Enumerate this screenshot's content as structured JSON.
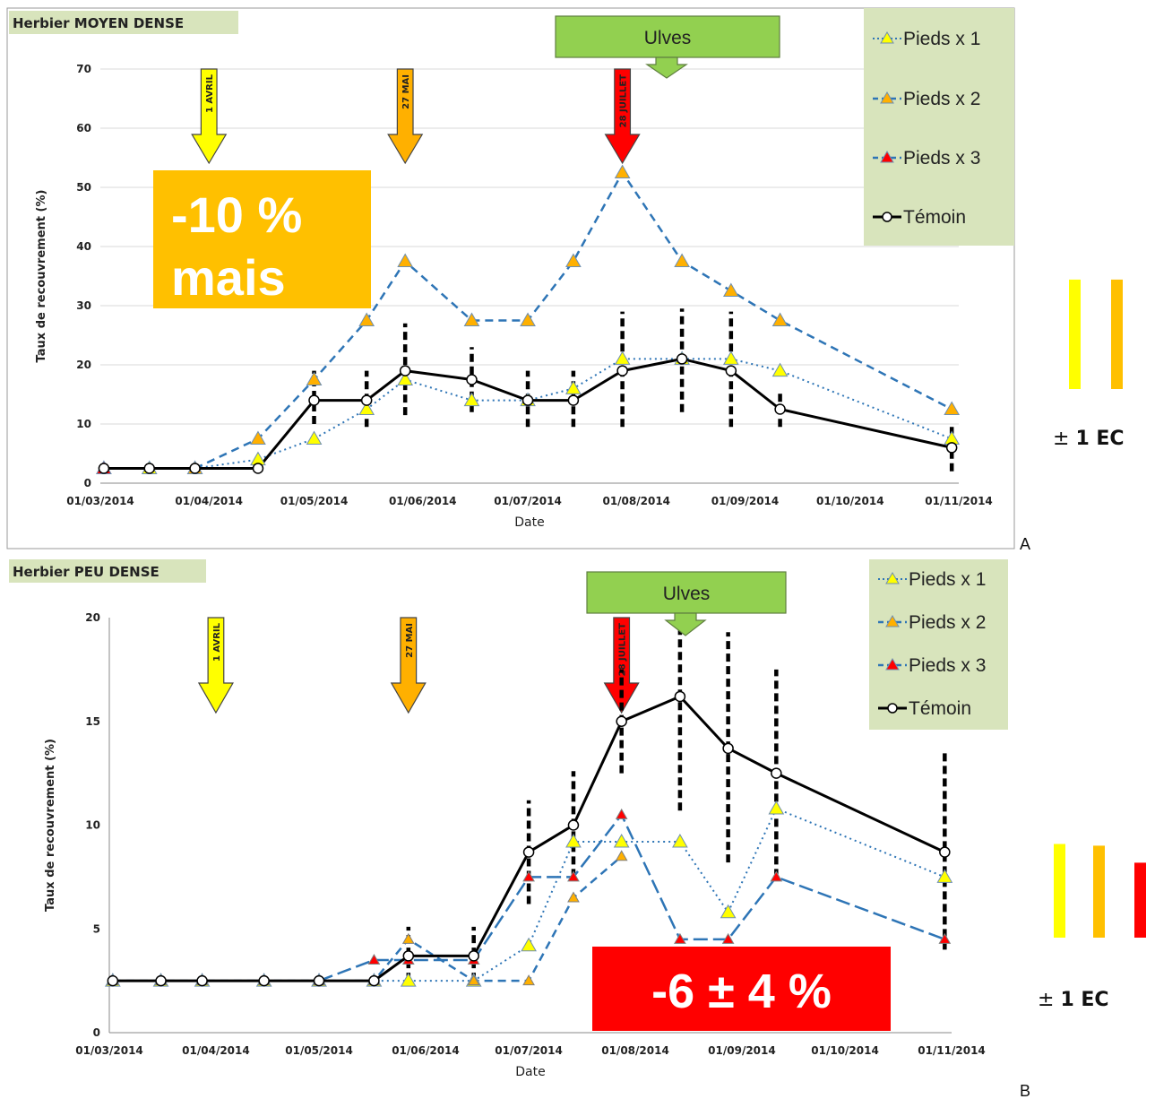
{
  "chart_data": [
    {
      "type": "line",
      "panel_label": "A",
      "title": "Herbier MOYEN DENSE",
      "xlabel": "Date",
      "ylabel": "Taux de recouvrement (%)",
      "ylim": [
        0,
        70
      ],
      "yticks": [
        "0",
        "10",
        "20",
        "30",
        "40",
        "50",
        "60",
        "70"
      ],
      "xticks": [
        "01/03/2014",
        "01/04/2014",
        "01/05/2014",
        "01/06/2014",
        "01/07/2014",
        "01/08/2014",
        "01/09/2014",
        "01/10/2014",
        "01/11/2014"
      ],
      "xdomain": [
        "2014-03-01",
        "2014-11-01"
      ],
      "grid": true,
      "legend_position": "top-right",
      "series": [
        {
          "name": "Pieds x 1",
          "x": [
            "2014-03-02",
            "2014-03-15",
            "2014-03-28",
            "2014-04-15",
            "2014-05-01",
            "2014-05-16",
            "2014-05-27",
            "2014-06-15",
            "2014-07-01",
            "2014-07-14",
            "2014-07-28",
            "2014-08-14",
            "2014-08-28",
            "2014-09-11",
            "2014-10-30"
          ],
          "values": [
            2.5,
            2.5,
            2.5,
            4,
            7.5,
            12.5,
            17.5,
            14,
            14,
            16,
            21,
            21,
            21,
            19,
            7.5
          ]
        },
        {
          "name": "Pieds x 2",
          "x": [
            "2014-03-28",
            "2014-04-15",
            "2014-05-01",
            "2014-05-16",
            "2014-05-27",
            "2014-06-15",
            "2014-07-01",
            "2014-07-14",
            "2014-07-28",
            "2014-08-14",
            "2014-08-28",
            "2014-09-11",
            "2014-10-30"
          ],
          "values": [
            2.5,
            7.5,
            17.5,
            27.5,
            37.5,
            27.5,
            27.5,
            37.5,
            52.5,
            37.5,
            32.5,
            27.5,
            12.5
          ]
        },
        {
          "name": "Pieds x 3",
          "x": [
            "2014-03-02"
          ],
          "values": [
            2.5
          ]
        },
        {
          "name": "Témoin",
          "x": [
            "2014-03-02",
            "2014-03-15",
            "2014-03-28",
            "2014-04-15",
            "2014-05-01",
            "2014-05-16",
            "2014-05-27",
            "2014-06-15",
            "2014-07-01",
            "2014-07-14",
            "2014-07-28",
            "2014-08-14",
            "2014-08-28",
            "2014-09-11",
            "2014-10-30"
          ],
          "values": [
            2.5,
            2.5,
            2.5,
            2.5,
            14,
            14,
            19,
            17.5,
            14,
            14,
            19,
            21,
            19,
            12.5,
            6
          ]
        }
      ],
      "error_bars": {
        "x": [
          "2014-05-01",
          "2014-05-16",
          "2014-05-27",
          "2014-06-15",
          "2014-07-01",
          "2014-07-14",
          "2014-07-28",
          "2014-08-14",
          "2014-08-28",
          "2014-09-11",
          "2014-10-30"
        ],
        "low": [
          10,
          9.5,
          11.5,
          12,
          9.5,
          9.5,
          9.5,
          12,
          9.5,
          9.5,
          2
        ],
        "high": [
          19,
          19,
          27,
          23,
          19,
          19,
          29,
          29.5,
          29,
          15.5,
          9.5
        ]
      },
      "arrows": [
        {
          "label": "1 AVRIL",
          "date": "2014-04-01",
          "color": "#ffff00"
        },
        {
          "label": "27 MAI",
          "date": "2014-05-27",
          "color": "#ffb000"
        },
        {
          "label": "28 JUILLET",
          "date": "2014-07-28",
          "color": "#ff0000"
        }
      ],
      "callout": {
        "label": "Ulves",
        "color": "#92d050"
      },
      "annotation": {
        "line1": "-10 %",
        "line2": "mais",
        "color": "#ffc000"
      },
      "ec_label": {
        "pm": "±",
        "text": "1 EC"
      },
      "ec_bars": [
        {
          "color": "#ffff00",
          "value": 18.5
        },
        {
          "color": "#ffc000",
          "value": 18.5
        }
      ]
    },
    {
      "type": "line",
      "panel_label": "B",
      "title": "Herbier PEU DENSE",
      "xlabel": "Date",
      "ylabel": "Taux de recouvrement (%)",
      "ylim": [
        0,
        20
      ],
      "yticks": [
        "0",
        "5",
        "10",
        "15",
        "20"
      ],
      "xticks": [
        "01/03/2014",
        "01/04/2014",
        "01/05/2014",
        "01/06/2014",
        "01/07/2014",
        "01/08/2014",
        "01/09/2014",
        "01/10/2014",
        "01/11/2014"
      ],
      "xdomain": [
        "2014-03-01",
        "2014-11-01"
      ],
      "grid": false,
      "legend_position": "top-right",
      "series": [
        {
          "name": "Pieds x 1",
          "x": [
            "2014-03-02",
            "2014-03-16",
            "2014-03-28",
            "2014-04-15",
            "2014-05-01",
            "2014-05-17",
            "2014-05-27",
            "2014-06-15",
            "2014-07-01",
            "2014-07-14",
            "2014-07-28",
            "2014-08-14",
            "2014-08-28",
            "2014-09-11",
            "2014-10-30"
          ],
          "values": [
            2.5,
            2.5,
            2.5,
            2.5,
            2.5,
            2.5,
            2.5,
            2.5,
            4.2,
            9.2,
            9.2,
            9.2,
            5.8,
            10.8,
            7.5
          ]
        },
        {
          "name": "Pieds x 2",
          "x": [
            "2014-03-02",
            "2014-03-16",
            "2014-03-28",
            "2014-04-15",
            "2014-05-01",
            "2014-05-17",
            "2014-05-27",
            "2014-06-15",
            "2014-07-01",
            "2014-07-14",
            "2014-07-28"
          ],
          "values": [
            2.5,
            2.5,
            2.5,
            2.5,
            2.5,
            2.5,
            4.5,
            2.5,
            2.5,
            6.5,
            8.5
          ]
        },
        {
          "name": "Pieds x 3",
          "x": [
            "2014-05-01",
            "2014-05-17",
            "2014-05-27",
            "2014-06-15",
            "2014-07-01",
            "2014-07-14",
            "2014-07-28",
            "2014-08-14",
            "2014-08-28",
            "2014-09-11",
            "2014-10-30"
          ],
          "values": [
            2.5,
            3.5,
            3.5,
            3.5,
            7.5,
            7.5,
            10.5,
            4.5,
            4.5,
            7.5,
            4.5
          ]
        },
        {
          "name": "Témoin",
          "x": [
            "2014-03-02",
            "2014-03-16",
            "2014-03-28",
            "2014-04-15",
            "2014-05-01",
            "2014-05-17",
            "2014-05-27",
            "2014-06-15",
            "2014-07-01",
            "2014-07-14",
            "2014-07-28",
            "2014-08-14",
            "2014-08-28",
            "2014-09-11",
            "2014-10-30"
          ],
          "values": [
            2.5,
            2.5,
            2.5,
            2.5,
            2.5,
            2.5,
            3.7,
            3.7,
            8.7,
            10,
            15,
            16.2,
            13.7,
            12.5,
            8.7
          ]
        }
      ],
      "error_bars": {
        "x": [
          "2014-05-27",
          "2014-06-15",
          "2014-07-01",
          "2014-07-14",
          "2014-07-28",
          "2014-08-14",
          "2014-08-28",
          "2014-09-11",
          "2014-10-30"
        ],
        "low": [
          2.5,
          2.5,
          6.2,
          7.5,
          12.5,
          10.7,
          8.2,
          7.5,
          4
        ],
        "high": [
          5.1,
          5.1,
          11.2,
          12.6,
          17.5,
          19.8,
          19.3,
          17.5,
          13.5
        ]
      },
      "arrows": [
        {
          "label": "1 AVRIL",
          "date": "2014-04-01",
          "color": "#ffff00"
        },
        {
          "label": "27 MAI",
          "date": "2014-05-27",
          "color": "#ffb000"
        },
        {
          "label": "28 JUILLET",
          "date": "2014-07-28",
          "color": "#ff0000"
        }
      ],
      "callout": {
        "label": "Ulves",
        "color": "#92d050"
      },
      "annotation": {
        "line1": "-6 ± 4 %",
        "color": "#ff0000"
      },
      "ec_label": {
        "pm": "±",
        "text": "1 EC"
      },
      "ec_bars": [
        {
          "color": "#ffff00",
          "value": 5.5
        },
        {
          "color": "#ffc000",
          "value": 5.4
        },
        {
          "color": "#ff0000",
          "value": 4.4
        }
      ]
    }
  ],
  "style": {
    "x1_color": "#ffff00",
    "x2_color": "#ffb000",
    "x3_color": "#ff0000",
    "temoin_color": "#000000",
    "line_blue": "#2e75b6",
    "legend_bg": "#d8e4bc",
    "title_bg": "#d8e4bc"
  }
}
